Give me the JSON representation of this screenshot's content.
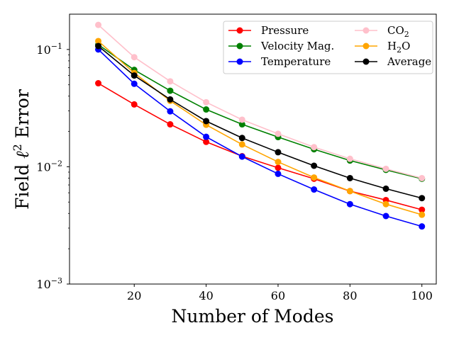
{
  "chart_data": {
    "type": "line",
    "xlabel": "Number of Modes",
    "ylabel_main": "Field ",
    "ylabel_ell": "ℓ",
    "ylabel_sup": "2",
    "ylabel_tail": " Error",
    "yscale": "log",
    "xlim": [
      2,
      104
    ],
    "ylim": [
      0.001,
      0.2
    ],
    "x_ticks": [
      20,
      40,
      60,
      80,
      100
    ],
    "y_ticks": [
      {
        "value": 0.001,
        "base": "10",
        "exp": "−3"
      },
      {
        "value": 0.01,
        "base": "10",
        "exp": "−2"
      },
      {
        "value": 0.1,
        "base": "10",
        "exp": "−1"
      }
    ],
    "grid": false,
    "legend_position": "top-right",
    "x": [
      10,
      20,
      30,
      40,
      50,
      60,
      70,
      80,
      90,
      100
    ],
    "series": [
      {
        "name": "Pressure",
        "color": "#ff0000",
        "values": [
          0.0515,
          0.034,
          0.023,
          0.0163,
          0.0123,
          0.0098,
          0.0079,
          0.0062,
          0.0052,
          0.0043
        ]
      },
      {
        "name": "Velocity Mag.",
        "color": "#008000",
        "values": [
          0.11,
          0.067,
          0.0445,
          0.0308,
          0.023,
          0.0179,
          0.0141,
          0.0113,
          0.0094,
          0.0079
        ]
      },
      {
        "name": "Temperature",
        "color": "#0000ff",
        "values": [
          0.1,
          0.051,
          0.0297,
          0.018,
          0.0122,
          0.0087,
          0.0064,
          0.0048,
          0.0038,
          0.0031
        ]
      },
      {
        "name": "CO",
        "subscript": "2",
        "color": "#ffc0cb",
        "values": [
          0.162,
          0.086,
          0.0535,
          0.0355,
          0.0252,
          0.0191,
          0.0147,
          0.0117,
          0.0096,
          0.008
        ]
      },
      {
        "name": "H",
        "subscript": "2",
        "name_after": "O",
        "color": "#ffa500",
        "values": [
          0.118,
          0.063,
          0.0365,
          0.0228,
          0.0155,
          0.011,
          0.0081,
          0.0062,
          0.0048,
          0.0039
        ]
      },
      {
        "name": "Average",
        "color": "#000000",
        "values": [
          0.107,
          0.06,
          0.0375,
          0.0245,
          0.0176,
          0.0133,
          0.0102,
          0.008,
          0.0065,
          0.0054
        ]
      }
    ]
  }
}
